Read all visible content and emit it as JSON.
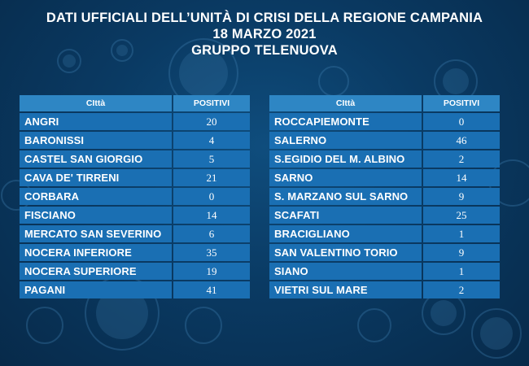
{
  "header": {
    "line1": "DATI UFFICIALI DELL’UNITÀ DI CRISI DELLA REGIONE CAMPANIA",
    "line2": "18 MARZO 2021",
    "line3": "GRUPPO TELENUOVA"
  },
  "columns": {
    "city": "CIttà",
    "positives": "POSITIVI"
  },
  "left_table": [
    {
      "city": "ANGRI",
      "positives": "20"
    },
    {
      "city": "BARONISSI",
      "positives": "4"
    },
    {
      "city": "CASTEL SAN GIORGIO",
      "positives": "5"
    },
    {
      "city": "CAVA DE' TIRRENI",
      "positives": "21"
    },
    {
      "city": "CORBARA",
      "positives": "0"
    },
    {
      "city": "FISCIANO",
      "positives": "14"
    },
    {
      "city": "MERCATO SAN SEVERINO",
      "positives": "6"
    },
    {
      "city": "NOCERA INFERIORE",
      "positives": "35"
    },
    {
      "city": "NOCERA SUPERIORE",
      "positives": "19"
    },
    {
      "city": "PAGANI",
      "positives": "41"
    }
  ],
  "right_table": [
    {
      "city": "ROCCAPIEMONTE",
      "positives": "0"
    },
    {
      "city": "SALERNO",
      "positives": "46"
    },
    {
      "city": "S.EGIDIO DEL M. ALBINO",
      "positives": "2"
    },
    {
      "city": "SARNO",
      "positives": "14"
    },
    {
      "city": "S. MARZANO SUL SARNO",
      "positives": "9"
    },
    {
      "city": "SCAFATI",
      "positives": "25"
    },
    {
      "city": "BRACIGLIANO",
      "positives": "1"
    },
    {
      "city": "SAN VALENTINO TORIO",
      "positives": "9"
    },
    {
      "city": "SIANO",
      "positives": "1"
    },
    {
      "city": "VIETRI SUL MARE",
      "positives": "2"
    }
  ],
  "colors": {
    "background": "#0a3a63",
    "header_cell": "#2e86c4",
    "row_cell": "#1a6fb3",
    "text": "#ffffff"
  },
  "background_decoration": "virus-particles"
}
